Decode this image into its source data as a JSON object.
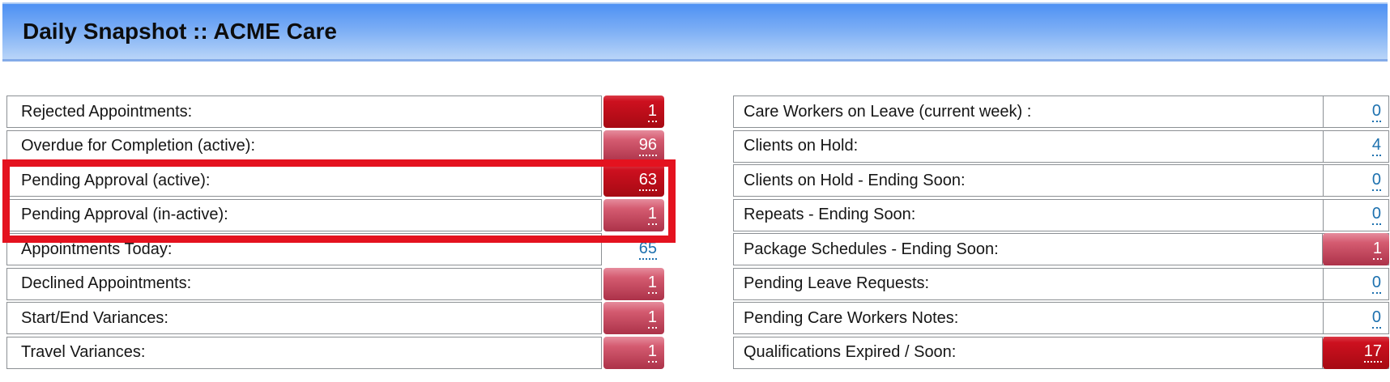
{
  "header": {
    "title": "Daily Snapshot :: ACME Care"
  },
  "colors": {
    "header_gradient_top": "#4e91f4",
    "header_gradient_bottom": "#b9d5f8",
    "badge_red": "#cd101f",
    "badge_pink": "#d45b70",
    "link_blue": "#1d71af",
    "border_gray": "#8c9094",
    "highlight_red": "#e4121f"
  },
  "left_table": {
    "rows": [
      {
        "label": "Rejected Appointments:",
        "value": "1",
        "style": "badge-red"
      },
      {
        "label": "Overdue for Completion (active):",
        "value": "96",
        "style": "badge-pink"
      },
      {
        "label": "Pending Approval (active):",
        "value": "63",
        "style": "badge-red"
      },
      {
        "label": "Pending Approval (in-active):",
        "value": "1",
        "style": "badge-pink"
      },
      {
        "label": "Appointments Today:",
        "value": "65",
        "style": "val-link"
      },
      {
        "label": "Declined Appointments:",
        "value": "1",
        "style": "badge-pink"
      },
      {
        "label": "Start/End Variances:",
        "value": "1",
        "style": "badge-pink"
      },
      {
        "label": "Travel Variances:",
        "value": "1",
        "style": "badge-pink"
      }
    ]
  },
  "right_table": {
    "rows": [
      {
        "label": "Care Workers on Leave (current week) :",
        "value": "0",
        "style": "val-link"
      },
      {
        "label": "Clients on Hold:",
        "value": "4",
        "style": "val-link"
      },
      {
        "label": "Clients on Hold - Ending Soon:",
        "value": "0",
        "style": "val-link"
      },
      {
        "label": "Repeats - Ending Soon:",
        "value": "0",
        "style": "val-link"
      },
      {
        "label": "Package Schedules - Ending Soon:",
        "value": "1",
        "style": "badge-pink"
      },
      {
        "label": "Pending Leave Requests:",
        "value": "0",
        "style": "val-link"
      },
      {
        "label": "Pending Care Workers Notes:",
        "value": "0",
        "style": "val-link"
      },
      {
        "label": "Qualifications Expired / Soon:",
        "value": "17",
        "style": "badge-red"
      }
    ]
  },
  "annotation": {
    "type": "highlight-rectangle",
    "highlighted_rows": [
      "Pending Approval (active):",
      "Pending Approval (in-active):"
    ]
  }
}
